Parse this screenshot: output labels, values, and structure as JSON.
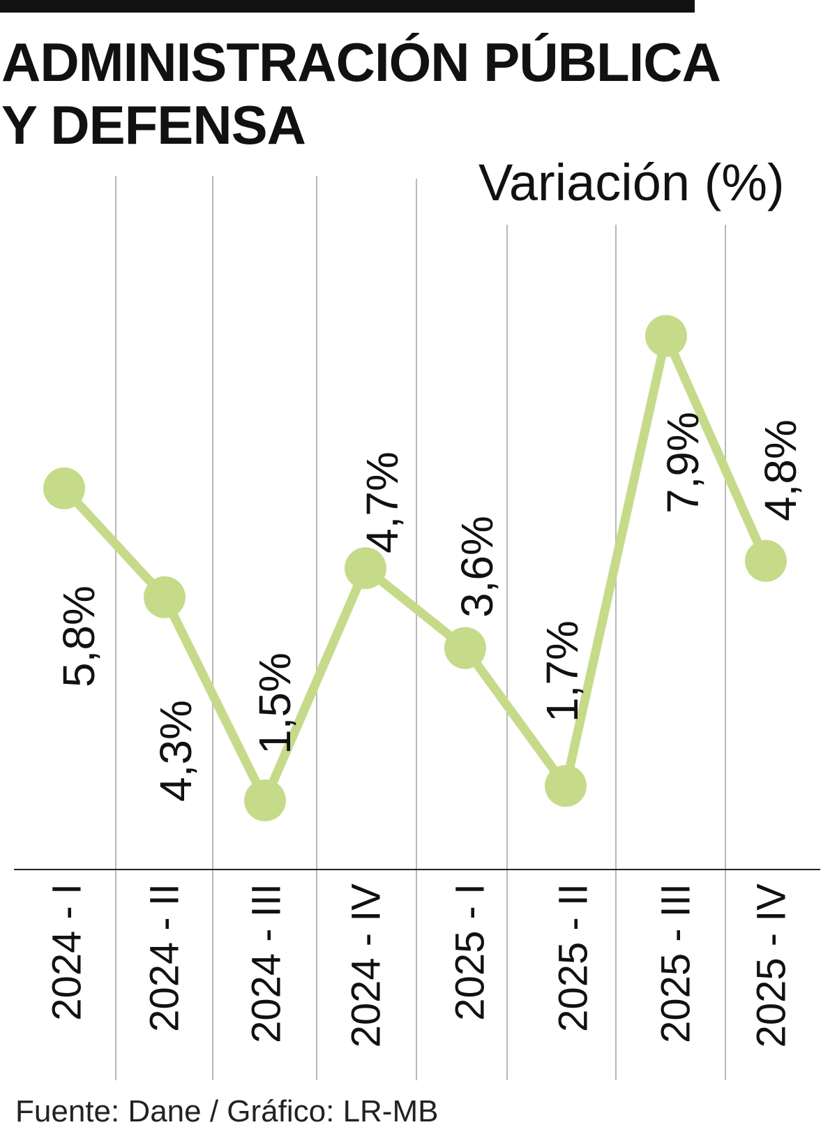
{
  "header": {
    "title_line1": "ADMINISTRACIÓN PÚBLICA",
    "title_line2": "Y DEFENSA",
    "unit": "Variación (%)"
  },
  "footer": {
    "source": "Fuente: Dane / Gráfico: LR-MB"
  },
  "colors": {
    "line": "#c5db8a",
    "text": "#111111",
    "grid": "#b8b8b8",
    "axis": "#222222"
  },
  "chart_data": {
    "type": "line",
    "title": "ADMINISTRACIÓN PÚBLICA Y DEFENSA",
    "ylabel": "Variación (%)",
    "categories": [
      "2024 - I",
      "2024 - II",
      "2024 - III",
      "2024 - IV",
      "2025 - I",
      "2025 - II",
      "2025 - III",
      "2025 - IV"
    ],
    "values": [
      5.8,
      4.3,
      1.5,
      4.7,
      3.6,
      1.7,
      7.9,
      4.8
    ],
    "data_labels": [
      "5,8%",
      "4,3%",
      "1,5%",
      "4,7%",
      "3,6%",
      "1,7%",
      "7,9%",
      "4,8%"
    ],
    "grid": true
  }
}
